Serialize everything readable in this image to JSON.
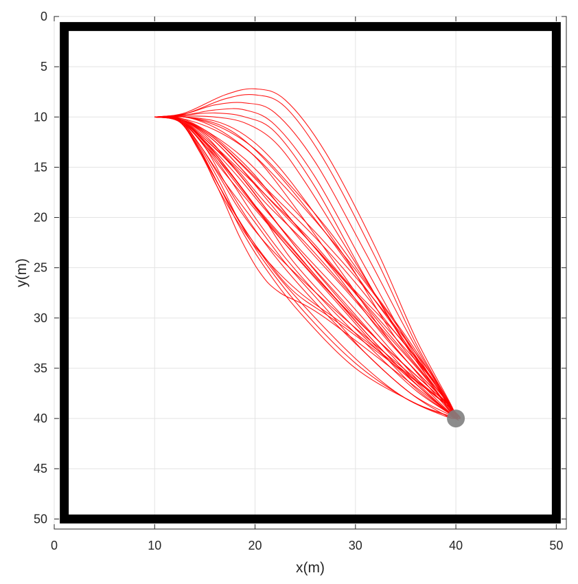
{
  "chart_data": {
    "type": "line",
    "title": "",
    "xlabel": "x(m)",
    "ylabel": "y(m)",
    "xlim": [
      0,
      51
    ],
    "ylim": [
      0,
      51
    ],
    "y_axis_reversed": true,
    "grid": true,
    "x_ticks": [
      "0",
      "10",
      "20",
      "30",
      "40",
      "50"
    ],
    "y_ticks": [
      "0",
      "5",
      "10",
      "15",
      "20",
      "25",
      "30",
      "35",
      "40",
      "45",
      "50"
    ],
    "boundary": {
      "x": [
        1,
        50
      ],
      "y": [
        1,
        50
      ],
      "color": "#000000"
    },
    "start": [
      10,
      10
    ],
    "goal": {
      "x": 40,
      "y": 40,
      "color": "#7f7f7f"
    },
    "trajectory_color": "#ff0000",
    "series": [
      {
        "x": [
          10,
          13,
          17,
          20,
          23,
          27,
          32,
          36,
          39.5,
          40
        ],
        "y": [
          10,
          9.6,
          7.8,
          7.2,
          8.3,
          13.5,
          23,
          32,
          38.6,
          40
        ]
      },
      {
        "x": [
          10,
          13,
          17,
          20,
          23,
          27,
          32,
          36,
          39.5,
          40
        ],
        "y": [
          10,
          9.7,
          8.2,
          7.8,
          9,
          14.5,
          24,
          32.5,
          38.7,
          40
        ]
      },
      {
        "x": [
          10,
          13,
          16,
          19,
          22,
          26,
          31,
          35.5,
          39.5,
          40
        ],
        "y": [
          10,
          9.7,
          8.8,
          8.6,
          9.6,
          14.5,
          23.5,
          32,
          38.7,
          40
        ]
      },
      {
        "x": [
          10,
          13,
          16,
          19,
          22,
          26,
          31,
          35.5,
          39.5,
          40
        ],
        "y": [
          10,
          9.8,
          9.3,
          9.3,
          10.8,
          16,
          25,
          33,
          38.8,
          40
        ]
      },
      {
        "x": [
          10,
          13,
          16,
          19,
          22,
          26,
          31,
          35.5,
          39.5,
          40
        ],
        "y": [
          10,
          9.8,
          9.6,
          10,
          11.5,
          17,
          26,
          33.5,
          38.9,
          40
        ]
      },
      {
        "x": [
          10,
          13,
          16,
          19,
          22,
          25,
          30,
          35,
          39.5,
          40
        ],
        "y": [
          10,
          9.9,
          10,
          10.6,
          12.5,
          16.5,
          24.5,
          32.5,
          38.8,
          40
        ]
      },
      {
        "x": [
          10,
          13,
          16,
          18.5,
          21,
          24,
          29,
          34,
          39.5,
          40
        ],
        "y": [
          10,
          10,
          10.4,
          11.5,
          13.5,
          17,
          24,
          32,
          38.8,
          40
        ]
      },
      {
        "x": [
          10,
          13,
          15.5,
          18,
          20.5,
          24,
          29,
          34,
          39.5,
          40
        ],
        "y": [
          10,
          10,
          10.8,
          12.3,
          14.5,
          19,
          26,
          33,
          38.9,
          40
        ]
      },
      {
        "x": [
          10,
          12.5,
          15,
          17.5,
          20,
          23,
          28,
          33,
          39.5,
          40
        ],
        "y": [
          10,
          10.1,
          11.3,
          13.3,
          15.8,
          19.5,
          25.5,
          32,
          38.9,
          40
        ]
      },
      {
        "x": [
          10,
          12.5,
          15,
          17,
          19.5,
          22.5,
          27,
          32,
          39.5,
          40
        ],
        "y": [
          10,
          10.2,
          11.8,
          14,
          17,
          21,
          26.5,
          32,
          38.9,
          40
        ]
      },
      {
        "x": [
          10,
          12.5,
          14.5,
          16.5,
          19,
          22,
          27,
          32,
          39.5,
          40
        ],
        "y": [
          10,
          10.3,
          12.3,
          15,
          18,
          21.5,
          27,
          32,
          38.9,
          40
        ]
      },
      {
        "x": [
          10,
          12.5,
          14.5,
          16.5,
          18.5,
          21,
          25,
          30,
          39.5,
          40
        ],
        "y": [
          10,
          10.4,
          12.8,
          16,
          19.3,
          22.5,
          26.5,
          31,
          39,
          40
        ]
      },
      {
        "x": [
          10,
          12.5,
          14.5,
          16,
          18,
          20.5,
          24.5,
          30,
          39.5,
          40
        ],
        "y": [
          10,
          10.5,
          13.3,
          16.5,
          20,
          23.5,
          27.5,
          31.5,
          39,
          40
        ]
      },
      {
        "x": [
          10,
          12.5,
          14.5,
          16.5,
          18.5,
          21,
          24,
          29,
          39.5,
          40
        ],
        "y": [
          10,
          10.5,
          13.5,
          17,
          20.5,
          24,
          27.5,
          31,
          39,
          40
        ]
      },
      {
        "x": [
          10,
          12.5,
          14.5,
          16.5,
          18.5,
          20.5,
          22.5,
          27,
          39,
          40
        ],
        "y": [
          10,
          10.5,
          13.5,
          17.5,
          22,
          25.5,
          27.5,
          30,
          39.2,
          40
        ]
      },
      {
        "x": [
          10,
          12.5,
          14.5,
          16.5,
          18.5,
          21,
          24.5,
          30,
          36,
          39.5,
          40
        ],
        "y": [
          10,
          10.5,
          13.3,
          17,
          21,
          25,
          29.5,
          35,
          38.5,
          39.8,
          40
        ]
      },
      {
        "x": [
          10,
          12.5,
          14.5,
          16.5,
          18.5,
          21,
          25,
          30,
          35,
          39,
          40
        ],
        "y": [
          10,
          10.4,
          13,
          16.5,
          20.5,
          24.5,
          29.5,
          34.5,
          38,
          39.8,
          40
        ]
      },
      {
        "x": [
          10,
          12.5,
          14.5,
          17,
          20,
          23,
          27,
          31,
          35.5,
          39,
          40
        ],
        "y": [
          10,
          10.4,
          12.8,
          16.5,
          20.5,
          24.5,
          29,
          33.5,
          37.5,
          39.7,
          40
        ]
      },
      {
        "x": [
          10,
          12.5,
          15,
          17.5,
          20.5,
          24,
          28,
          32,
          36.5,
          39.5,
          40
        ],
        "y": [
          10,
          10.3,
          12.5,
          15.5,
          19.5,
          23.5,
          28,
          32.5,
          37,
          39.6,
          40
        ]
      },
      {
        "x": [
          10,
          12.5,
          15,
          18,
          21,
          25,
          29,
          33,
          37,
          39.5,
          40
        ],
        "y": [
          10,
          10.3,
          12.2,
          15,
          18.5,
          22.5,
          27,
          31.5,
          36,
          39.4,
          40
        ]
      },
      {
        "x": [
          10,
          12.5,
          15,
          18,
          21.5,
          25.5,
          29.5,
          34,
          38,
          40
        ],
        "y": [
          10,
          10.2,
          12,
          14.8,
          18.2,
          22.2,
          26.8,
          31.5,
          36.5,
          40
        ]
      },
      {
        "x": [
          10,
          12.5,
          15.5,
          18.5,
          22,
          26,
          30,
          34,
          38,
          40
        ],
        "y": [
          10,
          10.2,
          11.8,
          14.5,
          18,
          22,
          26.5,
          31.5,
          36.5,
          40
        ]
      },
      {
        "x": [
          10,
          12.5,
          15.5,
          19,
          22.5,
          26.5,
          30.5,
          34.5,
          38.5,
          40
        ],
        "y": [
          10,
          10.2,
          11.6,
          14.2,
          17.8,
          22,
          26.5,
          31.5,
          37,
          40
        ]
      },
      {
        "x": [
          10,
          12.5,
          15.5,
          18.5,
          22,
          26,
          30,
          34,
          37.5,
          40
        ],
        "y": [
          10,
          10.2,
          12,
          15,
          18.8,
          23,
          27.5,
          32,
          36,
          40
        ]
      },
      {
        "x": [
          10,
          12.5,
          15,
          18,
          21,
          24.5,
          28.5,
          32.5,
          36.5,
          40
        ],
        "y": [
          10,
          10.3,
          12.4,
          15.6,
          19.2,
          23.2,
          27.5,
          32,
          36.5,
          40
        ]
      },
      {
        "x": [
          10,
          12.5,
          15,
          17.5,
          20.5,
          24,
          28,
          32,
          36,
          39.5,
          40
        ],
        "y": [
          10,
          10.3,
          12.6,
          15.8,
          19.6,
          23.8,
          28.3,
          32.8,
          37,
          39.6,
          40
        ]
      },
      {
        "x": [
          10,
          12.5,
          15,
          17.5,
          20,
          23,
          27,
          31.5,
          36,
          39.5,
          40
        ],
        "y": [
          10,
          10.4,
          12.8,
          16.2,
          20,
          24,
          28.5,
          33,
          37.2,
          39.6,
          40
        ]
      },
      {
        "x": [
          10,
          12.5,
          15,
          17,
          19.5,
          22.5,
          26.5,
          31,
          35.5,
          39.5,
          40
        ],
        "y": [
          10,
          10.4,
          13,
          16.5,
          20.5,
          24.5,
          29,
          33.5,
          37.5,
          39.7,
          40
        ]
      },
      {
        "x": [
          10,
          12.5,
          14.5,
          16.5,
          19,
          22,
          26,
          30.5,
          35,
          39.5,
          40
        ],
        "y": [
          10,
          10.5,
          13.2,
          17,
          21.2,
          25.5,
          30,
          34.5,
          38,
          39.8,
          40
        ]
      },
      {
        "x": [
          10,
          12.5,
          15,
          17.5,
          20.5,
          23.5,
          27.5,
          32,
          36.5,
          39.5,
          40
        ],
        "y": [
          10,
          10.3,
          12.4,
          15.5,
          19.5,
          24,
          28.5,
          33,
          37,
          39.6,
          40
        ]
      },
      {
        "x": [
          10,
          12.5,
          15,
          18,
          21,
          24.5,
          28.5,
          32.5,
          36.5,
          40
        ],
        "y": [
          10,
          10.2,
          12.2,
          15.2,
          19,
          23.5,
          28,
          32.5,
          36.8,
          40
        ]
      },
      {
        "x": [
          10,
          12.5,
          15.5,
          18.5,
          21.5,
          25,
          29,
          33,
          37,
          40
        ],
        "y": [
          10,
          10.2,
          12,
          15,
          18.6,
          22.8,
          27.2,
          31.8,
          36.5,
          40
        ]
      },
      {
        "x": [
          10,
          12.5,
          16,
          19.5,
          23,
          27,
          31,
          35,
          38.5,
          40
        ],
        "y": [
          10,
          10.1,
          11.3,
          13.5,
          17,
          21.5,
          26.5,
          32,
          37.5,
          40
        ]
      },
      {
        "x": [
          10,
          13,
          16.5,
          20,
          23.5,
          27.5,
          31.5,
          35.5,
          39,
          40
        ],
        "y": [
          10,
          10,
          11,
          13.2,
          16.8,
          21.5,
          27,
          32.5,
          38,
          40
        ]
      },
      {
        "x": [
          10,
          13,
          16.5,
          19.5,
          23,
          27,
          31,
          35,
          38.5,
          40
        ],
        "y": [
          10,
          10,
          10.8,
          12.8,
          16.5,
          21.5,
          27,
          32.5,
          38,
          40
        ]
      },
      {
        "x": [
          10,
          12.5,
          15.5,
          18.5,
          22,
          25.5,
          29.5,
          33.5,
          37.5,
          40
        ],
        "y": [
          10,
          10.2,
          11.8,
          14.6,
          18.3,
          22.5,
          27,
          31.8,
          36.5,
          40
        ]
      },
      {
        "x": [
          10,
          12.5,
          15,
          17.5,
          20,
          23.5,
          27.5,
          32,
          36.5,
          40
        ],
        "y": [
          10,
          10.4,
          12.8,
          15.6,
          18.8,
          22.8,
          27.5,
          32.5,
          37,
          40
        ]
      }
    ]
  }
}
